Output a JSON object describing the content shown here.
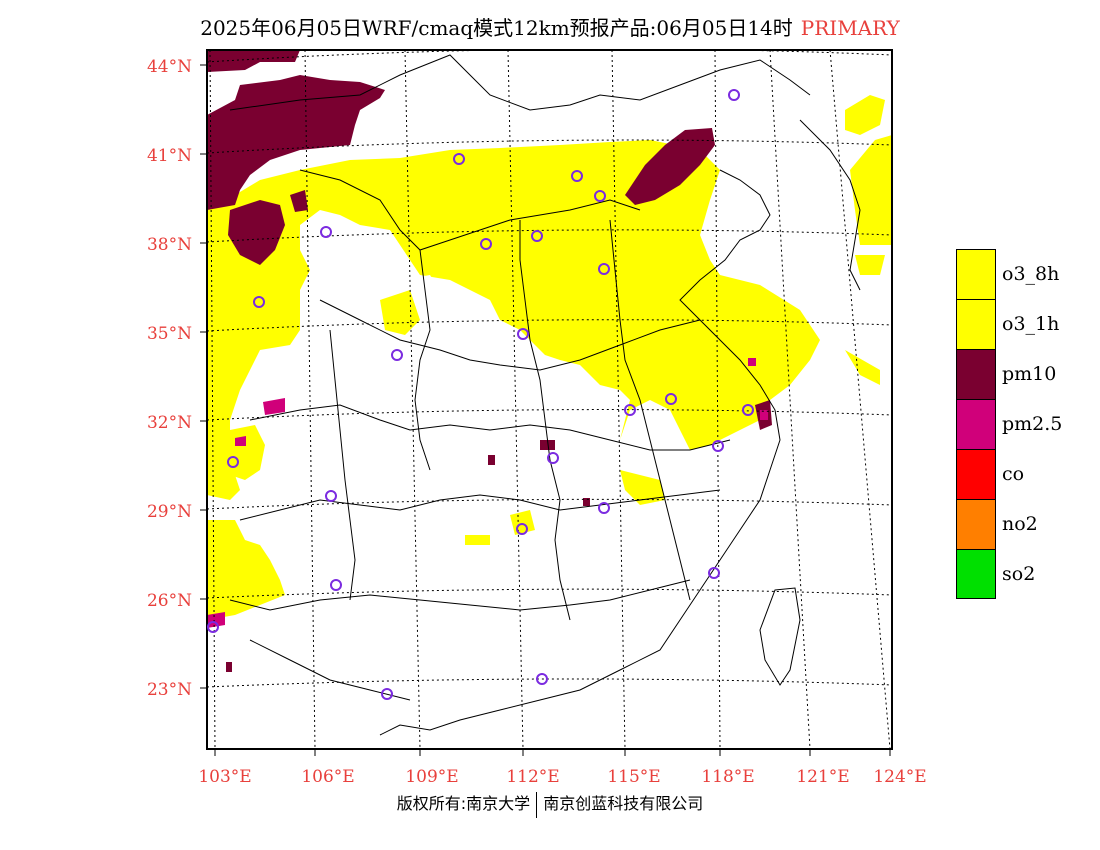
{
  "title": {
    "text": "2025年06月05日WRF/cmaq模式12km预报产品:06月05日14时",
    "tag": "PRIMARY",
    "tag_color": "#e8403c"
  },
  "axes": {
    "lat_labels": [
      "44°N",
      "41°N",
      "38°N",
      "35°N",
      "32°N",
      "29°N",
      "26°N",
      "23°N"
    ],
    "lon_labels": [
      "103°E",
      "106°E",
      "109°E",
      "112°E",
      "115°E",
      "118°E",
      "121°E",
      "124°E"
    ],
    "label_color": "#e8403c"
  },
  "legend": [
    {
      "label": "o3_8h",
      "color": "#ffff00"
    },
    {
      "label": "o3_1h",
      "color": "#ffff00"
    },
    {
      "label": "pm10",
      "color": "#7a0030"
    },
    {
      "label": "pm2.5",
      "color": "#d0007a"
    },
    {
      "label": "co",
      "color": "#ff0000"
    },
    {
      "label": "no2",
      "color": "#ff7f00"
    },
    {
      "label": "so2",
      "color": "#00e000"
    }
  ],
  "station_marker_color": "#7b2be0",
  "footer": {
    "left": "版权所有:南京大学",
    "right": "南京创蓝科技有限公司"
  }
}
